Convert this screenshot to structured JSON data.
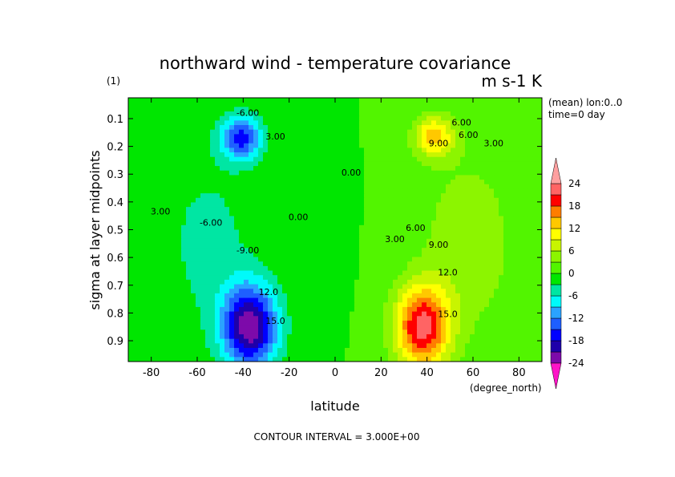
{
  "chart_data": {
    "type": "heatmap",
    "title": "northward wind - temperature covariance",
    "units": "m s-1 K",
    "panel_label": "(1)",
    "xlabel": "latitude",
    "xunit_label": "(degree_north)",
    "ylabel": "sigma at layer midpoints",
    "xlim": [
      -90,
      90
    ],
    "ylim": [
      0.025,
      0.975
    ],
    "y_inverted": true,
    "x_ticks": [
      -80,
      -60,
      -40,
      -20,
      0,
      20,
      40,
      60,
      80
    ],
    "x_tick_labels": [
      "-80",
      "-60",
      "-40",
      "-20",
      "0",
      "20",
      "40",
      "60",
      "80"
    ],
    "y_ticks": [
      0.1,
      0.2,
      0.3,
      0.4,
      0.5,
      0.6,
      0.7,
      0.8,
      0.9
    ],
    "y_tick_labels": [
      "0.1",
      "0.2",
      "0.3",
      "0.4",
      "0.5",
      "0.6",
      "0.7",
      "0.8",
      "0.9"
    ],
    "info_lines": [
      "(mean) lon:0..0",
      "time=0 day"
    ],
    "footer": "CONTOUR INTERVAL = 3.000E+00",
    "contour_interval": 3,
    "contour_labels": [
      {
        "text": "-6.00",
        "x": -38,
        "y": 0.09
      },
      {
        "text": "3.00",
        "x": -26,
        "y": 0.175
      },
      {
        "text": "3.00",
        "x": -76,
        "y": 0.445
      },
      {
        "text": "-6.00",
        "x": -54,
        "y": 0.485
      },
      {
        "text": "-9.00",
        "x": -38,
        "y": 0.585
      },
      {
        "text": "12.0",
        "x": -29,
        "y": 0.735
      },
      {
        "text": "15.0",
        "x": -26,
        "y": 0.84
      },
      {
        "text": "0.00",
        "x": -16,
        "y": 0.465
      },
      {
        "text": "0.00",
        "x": 7,
        "y": 0.305
      },
      {
        "text": "3.00",
        "x": 26,
        "y": 0.545
      },
      {
        "text": "6.00",
        "x": 35,
        "y": 0.505
      },
      {
        "text": "9.00",
        "x": 45,
        "y": 0.565
      },
      {
        "text": "12.0",
        "x": 49,
        "y": 0.665
      },
      {
        "text": "15.0",
        "x": 49,
        "y": 0.815
      },
      {
        "text": "9.00",
        "x": 45,
        "y": 0.2
      },
      {
        "text": "6.00",
        "x": 58,
        "y": 0.17
      },
      {
        "text": "6.00",
        "x": 55,
        "y": 0.125
      },
      {
        "text": "3.00",
        "x": 69,
        "y": 0.2
      }
    ],
    "features": [
      {
        "x": -41,
        "y": 0.17,
        "amp": -16,
        "sx": 9,
        "sy": 0.08
      },
      {
        "x": 43,
        "y": 0.165,
        "amp": 13,
        "sx": 9,
        "sy": 0.075
      },
      {
        "x": -37,
        "y": 0.85,
        "amp": -23,
        "sx": 12,
        "sy": 0.15
      },
      {
        "x": 38,
        "y": 0.85,
        "amp": 22,
        "sx": 12,
        "sy": 0.15
      },
      {
        "x": -55,
        "y": 0.55,
        "amp": -4,
        "sx": 22,
        "sy": 0.35
      },
      {
        "x": 58,
        "y": 0.55,
        "amp": 5,
        "sx": 22,
        "sy": 0.35
      },
      {
        "x": -3,
        "y": 0.45,
        "amp": -1.5,
        "sx": 8,
        "sy": 0.25
      }
    ],
    "colorbar": {
      "levels": [
        -27,
        -24,
        -21,
        -18,
        -15,
        -12,
        -9,
        -6,
        -3,
        0,
        3,
        6,
        9,
        12,
        15,
        18,
        21,
        24,
        27
      ],
      "labels": [
        "24",
        "18",
        "12",
        "6",
        "0",
        "-6",
        "-12",
        "-18",
        "-24"
      ],
      "label_values": [
        24,
        18,
        12,
        6,
        0,
        -6,
        -12,
        -18,
        -24
      ],
      "colors": [
        "#ff14c8",
        "#7d0aaa",
        "#1e00aa",
        "#0000ff",
        "#1e5fff",
        "#2aa3ff",
        "#00fafa",
        "#00e6a3",
        "#00e600",
        "#52f500",
        "#8cf500",
        "#c8f500",
        "#ffff00",
        "#ffc800",
        "#ff7d00",
        "#ff0000",
        "#ff6464",
        "#ffa0a0"
      ]
    }
  }
}
